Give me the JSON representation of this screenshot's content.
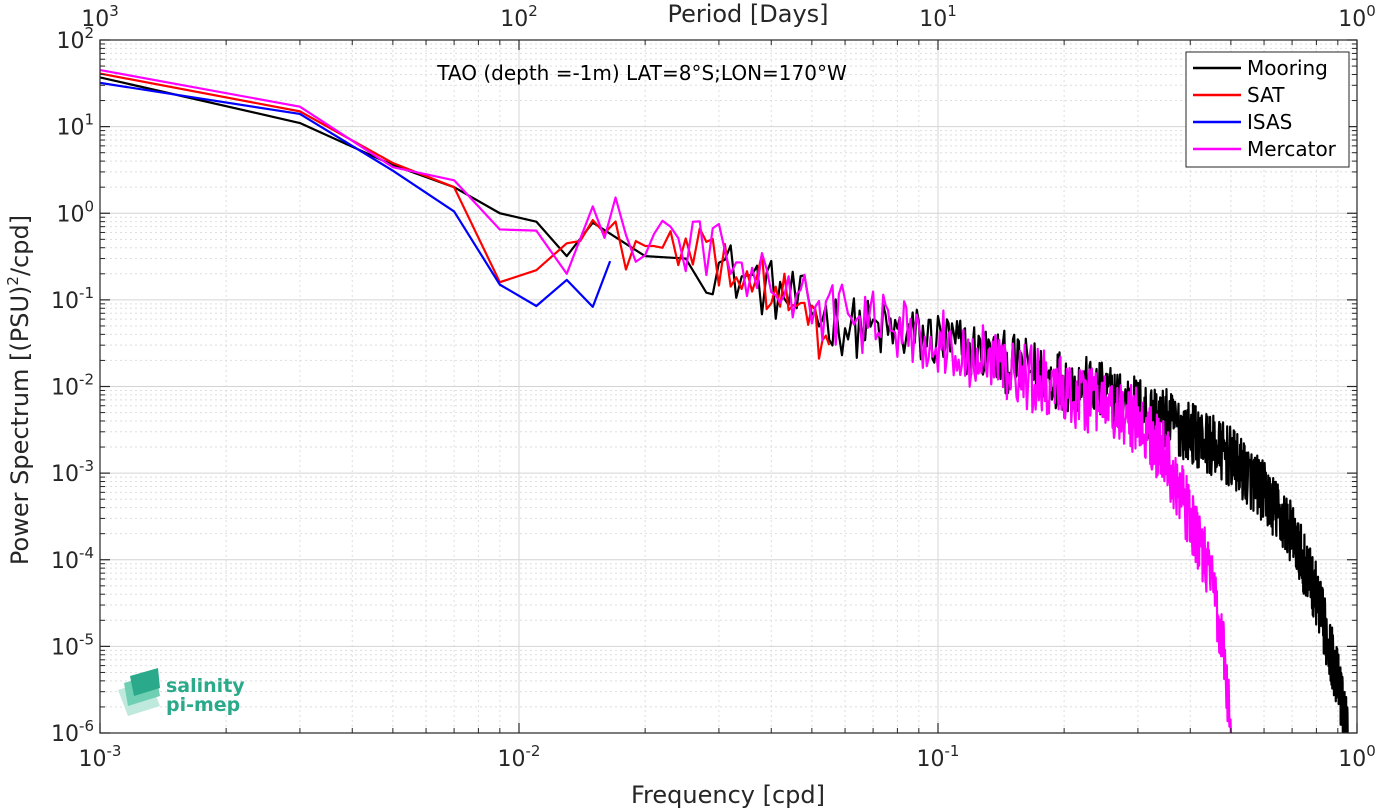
{
  "chart_data": {
    "type": "line",
    "title": "TAO (depth =-1m) LAT=8°S;LON=170°W",
    "xlabel": "Frequency [cpd]",
    "ylabel": "Power Spectrum [(PSU)",
    "ylabel_sup": "2",
    "ylabel_tail": "/cpd]",
    "top_xlabel": "Period [Days]",
    "xscale": "log",
    "yscale": "log",
    "xlim": [
      0.001,
      1
    ],
    "ylim": [
      1e-06,
      100
    ],
    "grid": true,
    "legend_position": "top-right",
    "x_ticks": [
      {
        "b": "10",
        "e": "-3",
        "v": 0.001
      },
      {
        "b": "10",
        "e": "-2",
        "v": 0.01
      },
      {
        "b": "10",
        "e": "-1",
        "v": 0.1
      },
      {
        "b": "10",
        "e": "0",
        "v": 1
      }
    ],
    "top_ticks": [
      {
        "b": "10",
        "e": "3",
        "v": 0.001
      },
      {
        "b": "10",
        "e": "2",
        "v": 0.01
      },
      {
        "b": "10",
        "e": "1",
        "v": 0.1
      },
      {
        "b": "10",
        "e": "0",
        "v": 1
      }
    ],
    "y_ticks": [
      {
        "b": "10",
        "e": "2",
        "v": 100
      },
      {
        "b": "10",
        "e": "1",
        "v": 10
      },
      {
        "b": "10",
        "e": "0",
        "v": 1
      },
      {
        "b": "10",
        "e": "-1",
        "v": 0.1
      },
      {
        "b": "10",
        "e": "-2",
        "v": 0.01
      },
      {
        "b": "10",
        "e": "-3",
        "v": 0.001
      },
      {
        "b": "10",
        "e": "-4",
        "v": 0.0001
      },
      {
        "b": "10",
        "e": "-5",
        "v": 1e-05
      },
      {
        "b": "10",
        "e": "-6",
        "v": 1e-06
      }
    ],
    "series": [
      {
        "name": "Mooring",
        "color": "#000000",
        "x_range": [
          0.001,
          0.95
        ],
        "noise_from": 0.028,
        "noise_amp": 0.6,
        "anchors": [
          [
            0.001,
            37
          ],
          [
            0.003,
            11
          ],
          [
            0.005,
            3.6
          ],
          [
            0.007,
            2.0
          ],
          [
            0.009,
            1.0
          ],
          [
            0.011,
            0.8
          ],
          [
            0.013,
            0.32
          ],
          [
            0.015,
            0.78
          ],
          [
            0.02,
            0.32
          ],
          [
            0.025,
            0.3
          ],
          [
            0.03,
            0.25
          ],
          [
            0.04,
            0.13
          ],
          [
            0.06,
            0.05
          ],
          [
            0.1,
            0.035
          ],
          [
            0.15,
            0.018
          ],
          [
            0.2,
            0.012
          ],
          [
            0.3,
            0.006
          ],
          [
            0.4,
            0.003
          ],
          [
            0.5,
            0.0015
          ],
          [
            0.6,
            0.0006
          ],
          [
            0.7,
            0.0002
          ],
          [
            0.8,
            4e-05
          ],
          [
            0.9,
            4e-06
          ],
          [
            0.95,
            1e-06
          ]
        ]
      },
      {
        "name": "SAT",
        "color": "#ff0000",
        "x_range": [
          0.001,
          0.055
        ],
        "noise_from": 0.014,
        "noise_amp": 0.55,
        "anchors": [
          [
            0.001,
            41
          ],
          [
            0.003,
            15
          ],
          [
            0.005,
            3.8
          ],
          [
            0.007,
            2.0
          ],
          [
            0.009,
            0.16
          ],
          [
            0.011,
            0.22
          ],
          [
            0.013,
            0.45
          ],
          [
            0.015,
            0.68
          ],
          [
            0.02,
            0.35
          ],
          [
            0.03,
            0.3
          ],
          [
            0.04,
            0.14
          ],
          [
            0.055,
            0.03
          ]
        ]
      },
      {
        "name": "ISAS",
        "color": "#0000ff",
        "x_range": [
          0.001,
          0.0165
        ],
        "noise_from": 1,
        "noise_amp": 0,
        "anchors": [
          [
            0.001,
            32
          ],
          [
            0.003,
            14
          ],
          [
            0.005,
            3.1
          ],
          [
            0.007,
            1.05
          ],
          [
            0.009,
            0.15
          ],
          [
            0.011,
            0.085
          ],
          [
            0.013,
            0.17
          ],
          [
            0.015,
            0.083
          ],
          [
            0.0165,
            0.28
          ]
        ]
      },
      {
        "name": "Mercator",
        "color": "#ff00ff",
        "x_range": [
          0.001,
          0.5
        ],
        "noise_from": 0.016,
        "noise_amp": 0.65,
        "anchors": [
          [
            0.001,
            45
          ],
          [
            0.003,
            17
          ],
          [
            0.005,
            3.4
          ],
          [
            0.007,
            2.4
          ],
          [
            0.009,
            0.65
          ],
          [
            0.011,
            0.63
          ],
          [
            0.013,
            0.2
          ],
          [
            0.015,
            1.2
          ],
          [
            0.02,
            0.45
          ],
          [
            0.03,
            0.35
          ],
          [
            0.05,
            0.08
          ],
          [
            0.1,
            0.035
          ],
          [
            0.15,
            0.015
          ],
          [
            0.2,
            0.009
          ],
          [
            0.3,
            0.004
          ],
          [
            0.35,
            0.0015
          ],
          [
            0.4,
            0.0003
          ],
          [
            0.45,
            6e-05
          ],
          [
            0.48,
            1e-05
          ],
          [
            0.5,
            1e-06
          ]
        ]
      }
    ]
  },
  "logo": {
    "line1": "salinity",
    "line2": "pi-mep",
    "color": "#2aaa8a"
  }
}
